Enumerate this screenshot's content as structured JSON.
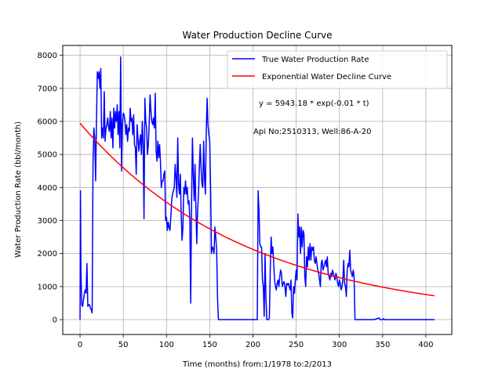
{
  "chart_data": {
    "type": "line",
    "title": "Water Production Decline Curve",
    "xlabel": "Time (months) from:1/1978 to:2/2013",
    "ylabel": "Water Production Rate (bbl/month)",
    "xlim": [
      -20,
      430
    ],
    "ylim": [
      -450,
      8300
    ],
    "xticks": [
      0,
      50,
      100,
      150,
      200,
      250,
      300,
      350,
      400
    ],
    "yticks": [
      0,
      1000,
      2000,
      3000,
      4000,
      5000,
      6000,
      7000,
      8000
    ],
    "grid": true,
    "legend_position": "top-right",
    "annotations": [
      "y = 5943.18 * exp(-0.01 * t)",
      "Api No:2510313, Well:86-A-20"
    ],
    "series": [
      {
        "name": "True Water Production Rate",
        "color": "#0000ff",
        "points": [
          [
            0,
            0
          ],
          [
            0.5,
            3900
          ],
          [
            1,
            1500
          ],
          [
            2,
            450
          ],
          [
            3,
            400
          ],
          [
            5,
            800
          ],
          [
            6,
            900
          ],
          [
            7,
            800
          ],
          [
            8,
            1700
          ],
          [
            9,
            400
          ],
          [
            10,
            450
          ],
          [
            11,
            450
          ],
          [
            12,
            350
          ],
          [
            13,
            300
          ],
          [
            14,
            200
          ],
          [
            15,
            4700
          ],
          [
            16,
            5800
          ],
          [
            17,
            5500
          ],
          [
            18,
            4200
          ],
          [
            19,
            6000
          ],
          [
            20,
            7500
          ],
          [
            21,
            7300
          ],
          [
            22,
            7500
          ],
          [
            23,
            7000
          ],
          [
            24,
            7600
          ],
          [
            25,
            5500
          ],
          [
            26,
            5800
          ],
          [
            27,
            5500
          ],
          [
            28,
            6900
          ],
          [
            29,
            5400
          ],
          [
            30,
            5800
          ],
          [
            31,
            5900
          ],
          [
            32,
            6100
          ],
          [
            33,
            5800
          ],
          [
            34,
            5700
          ],
          [
            35,
            6300
          ],
          [
            36,
            5500
          ],
          [
            37,
            6100
          ],
          [
            38,
            5200
          ],
          [
            39,
            6400
          ],
          [
            40,
            5800
          ],
          [
            41,
            6300
          ],
          [
            42,
            6000
          ],
          [
            43,
            6500
          ],
          [
            44,
            5600
          ],
          [
            45,
            6300
          ],
          [
            46,
            5200
          ],
          [
            47,
            7950
          ],
          [
            48,
            4500
          ],
          [
            49,
            5900
          ],
          [
            50,
            6250
          ],
          [
            51,
            6200
          ],
          [
            52,
            6000
          ],
          [
            53,
            5600
          ],
          [
            54,
            5900
          ],
          [
            55,
            5400
          ],
          [
            56,
            5800
          ],
          [
            57,
            5700
          ],
          [
            58,
            6400
          ],
          [
            59,
            6000
          ],
          [
            60,
            6100
          ],
          [
            61,
            5600
          ],
          [
            62,
            6200
          ],
          [
            63,
            5300
          ],
          [
            64,
            5200
          ],
          [
            65,
            4400
          ],
          [
            66,
            5900
          ],
          [
            67,
            5500
          ],
          [
            68,
            5100
          ],
          [
            69,
            5400
          ],
          [
            70,
            5600
          ],
          [
            71,
            5000
          ],
          [
            72,
            6000
          ],
          [
            73,
            5300
          ],
          [
            74,
            3050
          ],
          [
            75,
            6700
          ],
          [
            76,
            6000
          ],
          [
            77,
            5800
          ],
          [
            78,
            5000
          ],
          [
            79,
            5300
          ],
          [
            80,
            5900
          ],
          [
            81,
            6800
          ],
          [
            82,
            6300
          ],
          [
            83,
            6000
          ],
          [
            84,
            5900
          ],
          [
            85,
            6100
          ],
          [
            86,
            5800
          ],
          [
            87,
            6850
          ],
          [
            88,
            5100
          ],
          [
            89,
            4800
          ],
          [
            90,
            5400
          ],
          [
            91,
            4900
          ],
          [
            92,
            5300
          ],
          [
            93,
            4800
          ],
          [
            94,
            4000
          ],
          [
            95,
            4200
          ],
          [
            96,
            4200
          ],
          [
            97,
            4400
          ],
          [
            98,
            4500
          ],
          [
            99,
            3000
          ],
          [
            100,
            3100
          ],
          [
            101,
            2700
          ],
          [
            102,
            2950
          ],
          [
            103,
            2800
          ],
          [
            104,
            2700
          ],
          [
            105,
            3100
          ],
          [
            106,
            3600
          ],
          [
            107,
            3800
          ],
          [
            108,
            3900
          ],
          [
            109,
            4000
          ],
          [
            110,
            4700
          ],
          [
            111,
            4300
          ],
          [
            112,
            3700
          ],
          [
            113,
            5500
          ],
          [
            114,
            4100
          ],
          [
            115,
            3800
          ],
          [
            116,
            4400
          ],
          [
            117,
            3200
          ],
          [
            118,
            2400
          ],
          [
            119,
            2800
          ],
          [
            120,
            4000
          ],
          [
            121,
            3800
          ],
          [
            122,
            4200
          ],
          [
            123,
            3800
          ],
          [
            124,
            4000
          ],
          [
            125,
            3500
          ],
          [
            126,
            3600
          ],
          [
            127,
            3000
          ],
          [
            128,
            500
          ],
          [
            129,
            3500
          ],
          [
            130,
            5500
          ],
          [
            131,
            4400
          ],
          [
            132,
            3600
          ],
          [
            133,
            4700
          ],
          [
            134,
            3400
          ],
          [
            135,
            2300
          ],
          [
            136,
            3300
          ],
          [
            137,
            3800
          ],
          [
            138,
            4600
          ],
          [
            139,
            5300
          ],
          [
            140,
            4600
          ],
          [
            141,
            4100
          ],
          [
            142,
            4000
          ],
          [
            143,
            5400
          ],
          [
            144,
            4300
          ],
          [
            145,
            3800
          ],
          [
            146,
            5700
          ],
          [
            147,
            6700
          ],
          [
            148,
            5900
          ],
          [
            149,
            5600
          ],
          [
            150,
            5400
          ],
          [
            151,
            4000
          ],
          [
            152,
            2000
          ],
          [
            153,
            2200
          ],
          [
            154,
            2150
          ],
          [
            155,
            2000
          ],
          [
            156,
            2800
          ],
          [
            157,
            2500
          ],
          [
            158,
            2100
          ],
          [
            159,
            700
          ],
          [
            160,
            0
          ],
          [
            161,
            0
          ],
          [
            175,
            0
          ],
          [
            185,
            0
          ],
          [
            195,
            0
          ],
          [
            200,
            0
          ],
          [
            205,
            0
          ],
          [
            206,
            3900
          ],
          [
            207,
            3300
          ],
          [
            208,
            2300
          ],
          [
            209,
            2200
          ],
          [
            210,
            2200
          ],
          [
            211,
            1200
          ],
          [
            212,
            1000
          ],
          [
            213,
            100
          ],
          [
            214,
            2000
          ],
          [
            215,
            700
          ],
          [
            216,
            0
          ],
          [
            217,
            0
          ],
          [
            218,
            0
          ],
          [
            219,
            50
          ],
          [
            220,
            1500
          ],
          [
            221,
            2500
          ],
          [
            222,
            2000
          ],
          [
            223,
            2200
          ],
          [
            224,
            1700
          ],
          [
            225,
            1200
          ],
          [
            226,
            1000
          ],
          [
            227,
            900
          ],
          [
            228,
            1100
          ],
          [
            229,
            1200
          ],
          [
            230,
            1000
          ],
          [
            231,
            1300
          ],
          [
            232,
            1500
          ],
          [
            233,
            1400
          ],
          [
            234,
            1000
          ],
          [
            235,
            1100
          ],
          [
            236,
            1150
          ],
          [
            237,
            1000
          ],
          [
            238,
            700
          ],
          [
            239,
            1100
          ],
          [
            240,
            1050
          ],
          [
            241,
            1100
          ],
          [
            242,
            1000
          ],
          [
            243,
            900
          ],
          [
            244,
            1200
          ],
          [
            245,
            200
          ],
          [
            246,
            50
          ],
          [
            247,
            1000
          ],
          [
            248,
            800
          ],
          [
            249,
            1200
          ],
          [
            250,
            1500
          ],
          [
            251,
            1200
          ],
          [
            252,
            3200
          ],
          [
            253,
            2500
          ],
          [
            254,
            2800
          ],
          [
            255,
            2000
          ],
          [
            256,
            2800
          ],
          [
            257,
            2200
          ],
          [
            258,
            2700
          ],
          [
            259,
            2600
          ],
          [
            260,
            1300
          ],
          [
            261,
            1000
          ],
          [
            262,
            1900
          ],
          [
            263,
            1600
          ],
          [
            264,
            2200
          ],
          [
            265,
            1800
          ],
          [
            266,
            2300
          ],
          [
            267,
            1800
          ],
          [
            268,
            2200
          ],
          [
            269,
            2100
          ],
          [
            270,
            2200
          ],
          [
            271,
            1800
          ],
          [
            272,
            1700
          ],
          [
            273,
            1900
          ],
          [
            274,
            1700
          ],
          [
            275,
            1500
          ],
          [
            276,
            1400
          ],
          [
            277,
            1200
          ],
          [
            278,
            1000
          ],
          [
            279,
            1700
          ],
          [
            280,
            1800
          ],
          [
            281,
            1500
          ],
          [
            282,
            1600
          ],
          [
            283,
            1700
          ],
          [
            284,
            1800
          ],
          [
            285,
            1600
          ],
          [
            286,
            1900
          ],
          [
            287,
            1400
          ],
          [
            288,
            1300
          ],
          [
            289,
            1200
          ],
          [
            290,
            1400
          ],
          [
            291,
            1300
          ],
          [
            292,
            1500
          ],
          [
            293,
            1400
          ],
          [
            294,
            1300
          ],
          [
            295,
            1200
          ],
          [
            296,
            1400
          ],
          [
            297,
            1300
          ],
          [
            298,
            1100
          ],
          [
            299,
            1000
          ],
          [
            300,
            1200
          ],
          [
            301,
            1100
          ],
          [
            302,
            900
          ],
          [
            303,
            1000
          ],
          [
            304,
            1200
          ],
          [
            305,
            1800
          ],
          [
            306,
            1100
          ],
          [
            307,
            1000
          ],
          [
            308,
            700
          ],
          [
            309,
            1500
          ],
          [
            310,
            1700
          ],
          [
            311,
            1600
          ],
          [
            312,
            2100
          ],
          [
            313,
            1500
          ],
          [
            314,
            1400
          ],
          [
            315,
            1300
          ],
          [
            316,
            1500
          ],
          [
            317,
            1300
          ],
          [
            318,
            0
          ],
          [
            320,
            0
          ],
          [
            330,
            0
          ],
          [
            340,
            0
          ],
          [
            346,
            50
          ],
          [
            347,
            0
          ],
          [
            350,
            0
          ],
          [
            351,
            30
          ],
          [
            352,
            0
          ],
          [
            360,
            0
          ],
          [
            370,
            0
          ],
          [
            380,
            0
          ],
          [
            390,
            0
          ],
          [
            400,
            0
          ],
          [
            410,
            0
          ]
        ]
      },
      {
        "name": "Exponential Water Decline Curve",
        "color": "#ff0000",
        "model": {
          "a": 5943.18,
          "b": 0.005142,
          "t_start": 0,
          "t_end": 410
        }
      }
    ]
  }
}
